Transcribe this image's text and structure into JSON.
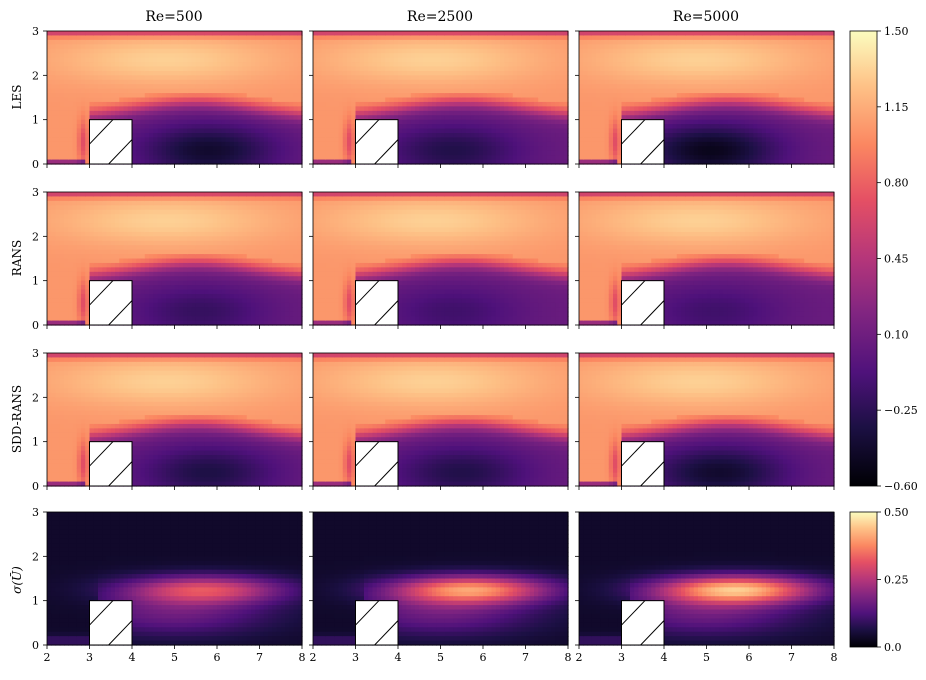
{
  "chart_data": {
    "type": "heatmap",
    "columns": [
      "Re=500",
      "Re=2500",
      "Re=5000"
    ],
    "rows": [
      "LES",
      "RANS",
      "SDD-RANS",
      "σ(Ū)"
    ],
    "xlim": [
      2,
      8
    ],
    "ylim": [
      0,
      3
    ],
    "xticks": [
      "2",
      "3",
      "4",
      "5",
      "6",
      "7",
      "8"
    ],
    "yticks": [
      "0",
      "1",
      "2",
      "3"
    ],
    "obstacle": {
      "x": [
        3,
        4
      ],
      "y": [
        0,
        1
      ]
    },
    "colorbar_mean": {
      "colormap": "magma",
      "range": [
        -0.6,
        1.5
      ],
      "ticks": [
        "1.50",
        "1.15",
        "0.80",
        "0.45",
        "0.10",
        "−0.25",
        "−0.60"
      ]
    },
    "colorbar_std": {
      "colormap": "magma",
      "range": [
        0.0,
        0.5
      ],
      "ticks": [
        "0.50",
        "0.25",
        "0.0"
      ]
    },
    "fields": {
      "mean_free_stream": 1.05,
      "wall_jet_peak": 1.38,
      "recirculation_min": [
        [
          -0.42,
          -0.3,
          -0.5
        ],
        [
          -0.2,
          -0.15,
          -0.15
        ],
        [
          -0.32,
          -0.3,
          -0.42
        ]
      ],
      "recirculation_center_x": [
        [
          5.8,
          5.3,
          5.1
        ],
        [
          5.6,
          5.3,
          5.2
        ],
        [
          5.8,
          5.5,
          5.3
        ]
      ],
      "std_peak": [
        0.3,
        0.4,
        0.45
      ]
    }
  }
}
